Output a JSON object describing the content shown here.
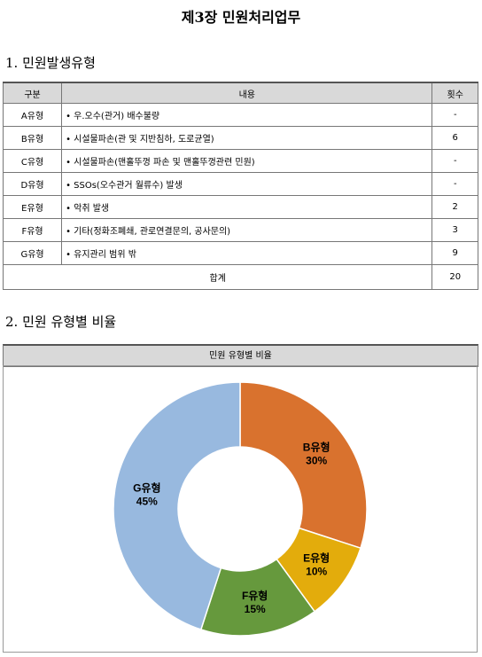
{
  "title": "제3장 민원처리업무",
  "section1": {
    "title": "1. 민원발생유형",
    "table": {
      "columns": [
        "구분",
        "내용",
        "횟수"
      ],
      "rows": [
        [
          "A유형",
          "• 우.오수(관거) 배수불량",
          "-"
        ],
        [
          "B유형",
          "• 시설물파손(관 및 지반침하, 도로균열)",
          6
        ],
        [
          "C유형",
          "• 시설물파손(맨홀뚜껑 파손 및 맨홀뚜껑관련 민원)",
          "-"
        ],
        [
          "D유형",
          "• SSOs(오수관거 월류수) 발생",
          "-"
        ],
        [
          "E유형",
          "• 악취 발생",
          2
        ],
        [
          "F유형",
          "• 기타(정화조폐쇄, 관로연결문의, 공사문의)",
          3
        ],
        [
          "G유형",
          "• 유지관리 범위 밖",
          9
        ]
      ],
      "total": [
        "합계",
        20
      ]
    }
  },
  "section2": {
    "title": "2. 민원 유형별 비율"
  },
  "chart_data": {
    "type": "pie",
    "title": "민원 유형별 비율",
    "categories": [
      "B유형",
      "E유형",
      "F유형",
      "G유형"
    ],
    "values": [
      30,
      10,
      15,
      45
    ],
    "value_labels": [
      "30%",
      "10%",
      "15%",
      "45%"
    ],
    "colors": [
      "#d9722e",
      "#e3ac0c",
      "#66993d",
      "#98b9df"
    ],
    "donut": true
  }
}
